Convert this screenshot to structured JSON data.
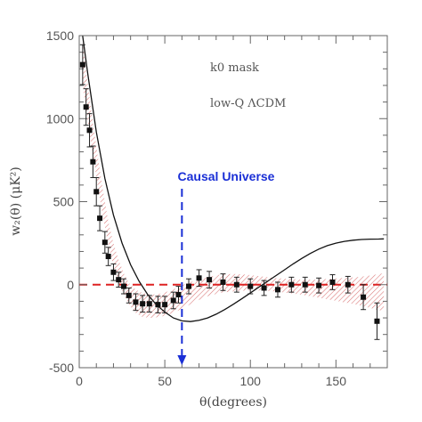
{
  "chart_data": {
    "type": "scatter",
    "xlabel": "θ(degrees)",
    "ylabel": "w₂(θ)  (μK²)",
    "xlim": [
      0,
      180
    ],
    "ylim": [
      -500,
      1500
    ],
    "x_ticks": [
      0,
      50,
      100,
      150
    ],
    "y_ticks": [
      -500,
      0,
      500,
      1000,
      1500
    ],
    "grid": false,
    "annotations": {
      "mask": "k0 mask",
      "model": "low-Q ΛCDM",
      "causal_label": "Causal Universe"
    },
    "causal_theta": 60,
    "zero_line": 0,
    "colors": {
      "data": "#111111",
      "model_curve": "#111111",
      "band": "#cc4444",
      "zero_line": "#dd2222",
      "causal": "#1a2fd6"
    },
    "series": [
      {
        "values": [
          {
            "x": 2,
            "y": 1325,
            "err": 120
          },
          {
            "x": 4,
            "y": 1070,
            "err": 110
          },
          {
            "x": 6,
            "y": 930,
            "err": 100
          },
          {
            "x": 8,
            "y": 740,
            "err": 95
          },
          {
            "x": 10,
            "y": 560,
            "err": 85
          },
          {
            "x": 12,
            "y": 400,
            "err": 75
          },
          {
            "x": 15,
            "y": 255,
            "err": 65
          },
          {
            "x": 17,
            "y": 170,
            "err": 55
          },
          {
            "x": 20,
            "y": 75,
            "err": 50
          },
          {
            "x": 23,
            "y": 30,
            "err": 45
          },
          {
            "x": 26,
            "y": -10,
            "err": 45
          },
          {
            "x": 29,
            "y": -65,
            "err": 45
          },
          {
            "x": 33,
            "y": -105,
            "err": 50
          },
          {
            "x": 37,
            "y": -115,
            "err": 50
          },
          {
            "x": 41,
            "y": -115,
            "err": 50
          },
          {
            "x": 46,
            "y": -120,
            "err": 50
          },
          {
            "x": 50,
            "y": -120,
            "err": 50
          },
          {
            "x": 55,
            "y": -95,
            "err": 50
          },
          {
            "x": 58,
            "y": -60,
            "err": 50
          },
          {
            "x": 64,
            "y": -10,
            "err": 45
          },
          {
            "x": 70,
            "y": 40,
            "err": 50
          },
          {
            "x": 76,
            "y": 30,
            "err": 50
          },
          {
            "x": 84,
            "y": 15,
            "err": 50
          },
          {
            "x": 92,
            "y": 0,
            "err": 45
          },
          {
            "x": 100,
            "y": -10,
            "err": 45
          },
          {
            "x": 108,
            "y": -20,
            "err": 45
          },
          {
            "x": 116,
            "y": -30,
            "err": 45
          },
          {
            "x": 124,
            "y": 0,
            "err": 45
          },
          {
            "x": 132,
            "y": 0,
            "err": 45
          },
          {
            "x": 140,
            "y": -5,
            "err": 45
          },
          {
            "x": 148,
            "y": 15,
            "err": 45
          },
          {
            "x": 157,
            "y": 0,
            "err": 50
          },
          {
            "x": 166,
            "y": -75,
            "err": 75
          },
          {
            "x": 174,
            "y": -220,
            "err": 110
          }
        ]
      }
    ],
    "model_curve": [
      [
        2,
        1500
      ],
      [
        5,
        1270
      ],
      [
        10,
        920
      ],
      [
        15,
        640
      ],
      [
        20,
        420
      ],
      [
        25,
        250
      ],
      [
        30,
        120
      ],
      [
        35,
        20
      ],
      [
        40,
        -60
      ],
      [
        45,
        -120
      ],
      [
        50,
        -165
      ],
      [
        55,
        -200
      ],
      [
        60,
        -218
      ],
      [
        65,
        -222
      ],
      [
        70,
        -215
      ],
      [
        75,
        -200
      ],
      [
        80,
        -178
      ],
      [
        85,
        -150
      ],
      [
        90,
        -118
      ],
      [
        95,
        -85
      ],
      [
        100,
        -50
      ],
      [
        105,
        -15
      ],
      [
        110,
        20
      ],
      [
        115,
        55
      ],
      [
        120,
        90
      ],
      [
        125,
        125
      ],
      [
        130,
        158
      ],
      [
        135,
        188
      ],
      [
        140,
        214
      ],
      [
        145,
        235
      ],
      [
        150,
        250
      ],
      [
        155,
        261
      ],
      [
        160,
        268
      ],
      [
        165,
        272
      ],
      [
        170,
        274
      ],
      [
        175,
        275
      ],
      [
        178,
        276
      ]
    ],
    "band_upper": [
      [
        2,
        1470
      ],
      [
        5,
        1200
      ],
      [
        8,
        980
      ],
      [
        11,
        760
      ],
      [
        14,
        560
      ],
      [
        17,
        380
      ],
      [
        20,
        250
      ],
      [
        23,
        150
      ],
      [
        26,
        70
      ],
      [
        29,
        10
      ],
      [
        33,
        -30
      ],
      [
        37,
        -50
      ],
      [
        42,
        -60
      ],
      [
        47,
        -55
      ],
      [
        52,
        -40
      ],
      [
        57,
        -20
      ],
      [
        62,
        5
      ],
      [
        68,
        25
      ],
      [
        75,
        45
      ],
      [
        82,
        60
      ],
      [
        90,
        65
      ],
      [
        98,
        60
      ],
      [
        106,
        50
      ],
      [
        114,
        40
      ],
      [
        122,
        35
      ],
      [
        130,
        30
      ],
      [
        138,
        30
      ],
      [
        146,
        35
      ],
      [
        154,
        40
      ],
      [
        162,
        45
      ],
      [
        170,
        55
      ],
      [
        178,
        70
      ]
    ],
    "band_lower": [
      [
        2,
        1200
      ],
      [
        5,
        980
      ],
      [
        8,
        780
      ],
      [
        11,
        580
      ],
      [
        14,
        400
      ],
      [
        17,
        240
      ],
      [
        20,
        110
      ],
      [
        23,
        20
      ],
      [
        26,
        -60
      ],
      [
        29,
        -120
      ],
      [
        33,
        -170
      ],
      [
        37,
        -195
      ],
      [
        42,
        -200
      ],
      [
        47,
        -195
      ],
      [
        52,
        -180
      ],
      [
        57,
        -160
      ],
      [
        62,
        -135
      ],
      [
        68,
        -100
      ],
      [
        75,
        -70
      ],
      [
        82,
        -50
      ],
      [
        90,
        -40
      ],
      [
        98,
        -35
      ],
      [
        106,
        -35
      ],
      [
        114,
        -40
      ],
      [
        122,
        -50
      ],
      [
        130,
        -60
      ],
      [
        138,
        -75
      ],
      [
        146,
        -90
      ],
      [
        154,
        -105
      ],
      [
        162,
        -120
      ],
      [
        170,
        -140
      ],
      [
        178,
        -160
      ]
    ]
  }
}
